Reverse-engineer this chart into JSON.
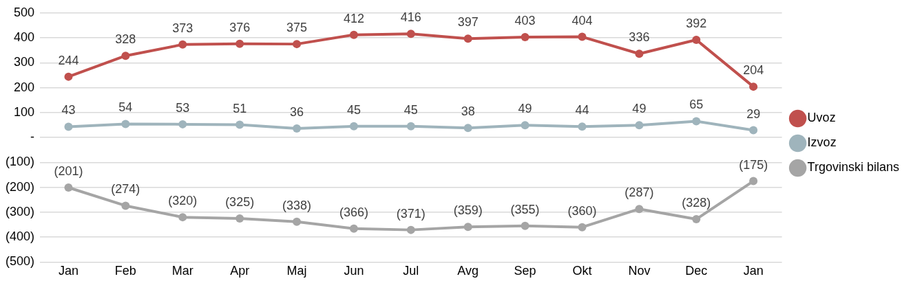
{
  "chart_data": {
    "type": "line",
    "categories": [
      "Jan",
      "Feb",
      "Mar",
      "Apr",
      "Maj",
      "Jun",
      "Jul",
      "Avg",
      "Sep",
      "Okt",
      "Nov",
      "Dec",
      "Jan"
    ],
    "series": [
      {
        "name": "Uvoz",
        "color": "#c0504d",
        "values": [
          244,
          328,
          373,
          376,
          375,
          412,
          416,
          397,
          403,
          404,
          336,
          392,
          204
        ],
        "value_labels": [
          "244",
          "328",
          "373",
          "376",
          "375",
          "412",
          "416",
          "397",
          "403",
          "404",
          "336",
          "392",
          "204"
        ]
      },
      {
        "name": "Izvoz",
        "color": "#9fb4bc",
        "values": [
          43,
          54,
          53,
          51,
          36,
          45,
          45,
          38,
          49,
          44,
          49,
          65,
          29
        ],
        "value_labels": [
          "43",
          "54",
          "53",
          "51",
          "36",
          "45",
          "45",
          "38",
          "49",
          "44",
          "49",
          "65",
          "29"
        ]
      },
      {
        "name": "Trgovinski bilans",
        "color": "#a5a5a5",
        "values": [
          -201,
          -274,
          -320,
          -325,
          -338,
          -366,
          -371,
          -359,
          -355,
          -360,
          -287,
          -328,
          -175
        ],
        "value_labels": [
          "(201)",
          "(274)",
          "(320)",
          "(325)",
          "(338)",
          "(366)",
          "(371)",
          "(359)",
          "(355)",
          "(360)",
          "(287)",
          "(328)",
          "(175)"
        ]
      }
    ],
    "ylim": [
      -500,
      500
    ],
    "yticks": [
      {
        "value": 500,
        "label": "500"
      },
      {
        "value": 400,
        "label": "400"
      },
      {
        "value": 300,
        "label": "300"
      },
      {
        "value": 200,
        "label": "200"
      },
      {
        "value": 100,
        "label": "100"
      },
      {
        "value": 0,
        "label": "-"
      },
      {
        "value": -100,
        "label": "(100)"
      },
      {
        "value": -200,
        "label": "(200)"
      },
      {
        "value": -300,
        "label": "(300)"
      },
      {
        "value": -400,
        "label": "(400)"
      },
      {
        "value": -500,
        "label": "(500)"
      }
    ],
    "grid": "y",
    "legend": "right",
    "marker": "circle",
    "line_style": "solid"
  }
}
